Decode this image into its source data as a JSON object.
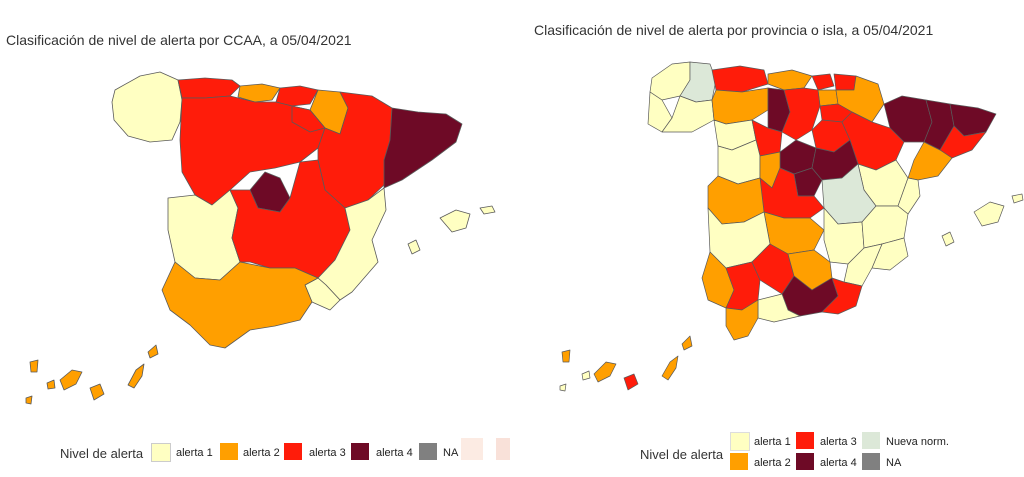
{
  "colors": {
    "alerta1": "#FFFFC2",
    "alerta2": "#FF9F00",
    "alerta3": "#FF1C0A",
    "alerta4": "#6E0A26",
    "nueva": "#DCE8D8",
    "na": "#808080",
    "border": "#5a5a5a"
  },
  "left": {
    "title": "Clasificación de nivel de alerta por CCAA, a 05/04/2021",
    "legend_title": "Nivel de alerta",
    "legend": [
      {
        "label": "alerta 1",
        "key": "alerta1"
      },
      {
        "label": "alerta 2",
        "key": "alerta2"
      },
      {
        "label": "alerta 3",
        "key": "alerta3"
      },
      {
        "label": "alerta 4",
        "key": "alerta4"
      },
      {
        "label": "NA",
        "key": "na"
      }
    ]
  },
  "right": {
    "title": "Clasificación de nivel de alerta por provincia o isla, a 05/04/2021",
    "legend_title": "Nivel de alerta",
    "legend": [
      {
        "label": "alerta 1",
        "key": "alerta1"
      },
      {
        "label": "alerta 2",
        "key": "alerta2"
      },
      {
        "label": "alerta 3",
        "key": "alerta3"
      },
      {
        "label": "alerta 4",
        "key": "alerta4"
      },
      {
        "label": "Nueva norm.",
        "key": "nueva"
      },
      {
        "label": "NA",
        "key": "na"
      }
    ]
  }
}
